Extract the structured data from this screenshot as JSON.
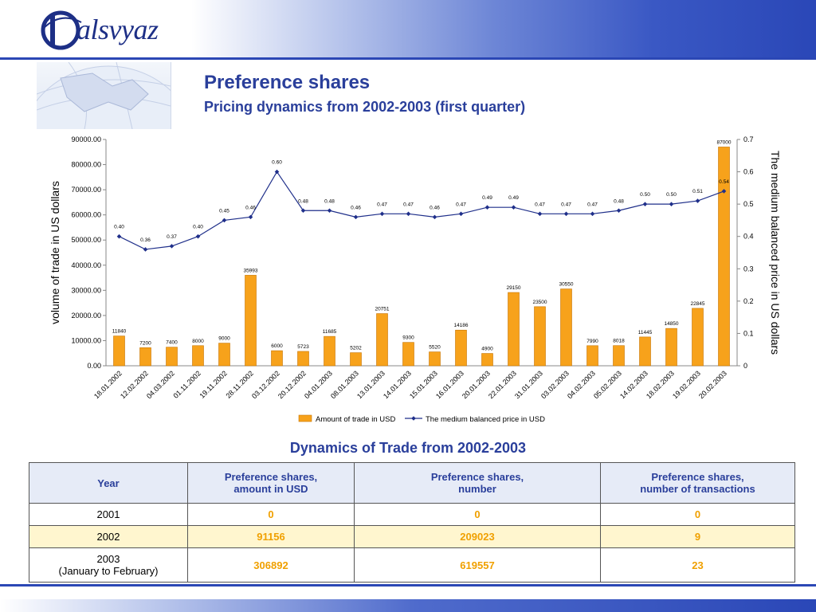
{
  "header": {
    "logo_text": "alsvyaz",
    "title": "Preference shares",
    "subtitle": "Pricing dynamics from 2002-2003 (first quarter)"
  },
  "chart_data": {
    "type": "bar+line",
    "categories": [
      "18.01.2002",
      "12.02.2002",
      "04.03.2002",
      "01.11.2002",
      "19.11.2002",
      "28.11.2002",
      "03.12.2002",
      "20.12.2002",
      "04.01.2003",
      "08.01.2003",
      "13.01.2003",
      "14.01.2003",
      "15.01.2003",
      "16.01.2003",
      "20.01.2003",
      "22.01.2003",
      "31.01.2003",
      "03.02.2003",
      "04.02.2003",
      "05.02.2003",
      "14.02.2003",
      "18.02.2003",
      "19.02.2003",
      "20.02.2003"
    ],
    "series": [
      {
        "name": "Amount of trade in USD",
        "type": "bar",
        "axis": "left",
        "values": [
          11840,
          7200,
          7400,
          8000,
          9000,
          35993,
          6000,
          5723,
          11685,
          5202,
          20751,
          9300,
          5520,
          14186,
          4900,
          29150,
          23500,
          30550,
          7990,
          8018,
          11445,
          14850,
          22845,
          87000
        ]
      },
      {
        "name": "The medium balanced price in USD",
        "type": "line",
        "axis": "right",
        "values": [
          0.4,
          0.36,
          0.37,
          0.4,
          0.45,
          0.46,
          0.6,
          0.48,
          0.48,
          0.46,
          0.47,
          0.47,
          0.46,
          0.47,
          0.49,
          0.49,
          0.47,
          0.47,
          0.47,
          0.48,
          0.5,
          0.5,
          0.51,
          0.54
        ]
      }
    ],
    "value_labels": {
      "bars": [
        "11840",
        "7200",
        "7400",
        "8000",
        "9000",
        "35993",
        "6000",
        "5723",
        "11685",
        "5202",
        "20751",
        "9300",
        "5520",
        "14186",
        "4900",
        "29150",
        "23500",
        "30550",
        "7990",
        "8018",
        "11445",
        "14850",
        "22845",
        "87000"
      ],
      "line": [
        "0.40",
        "0.36",
        "0.37",
        "0.40",
        "0.45",
        "0.46",
        "0.60",
        "0.48",
        "0.48",
        "0.46",
        "0.47",
        "0.47",
        "0.46",
        "0.47",
        "0.49",
        "0.49",
        "0.47",
        "0.47",
        "0.47",
        "0.48",
        "0.50",
        "0.50",
        "0.51",
        "0.54"
      ]
    },
    "ylabel": "volume of trade in US dollars",
    "y2label": "The medium balanced price in US dollars",
    "ylim": [
      0,
      90000
    ],
    "y2lim": [
      0,
      0.7
    ],
    "yticks": [
      "0.00",
      "10000.00",
      "20000.00",
      "30000.00",
      "40000.00",
      "50000.00",
      "60000.00",
      "70000.00",
      "80000.00",
      "90000.00"
    ],
    "y2ticks": [
      "0",
      "0.1",
      "0.2",
      "0.3",
      "0.4",
      "0.5",
      "0.6",
      "0.7"
    ],
    "legend_position": "bottom",
    "colors": {
      "bar": "#f7a21b",
      "bar_stroke": "#c77400",
      "line": "#1f2f8a",
      "marker": "#1f2f8a"
    }
  },
  "table": {
    "title": "Dynamics of Trade from 2002-2003",
    "headers": [
      "Year",
      "Preference shares,\namount in USD",
      "Preference shares,\nnumber",
      "Preference shares,\nnumber of transactions"
    ],
    "rows": [
      {
        "year": "2001",
        "amount": "0",
        "number": "0",
        "transactions": "0"
      },
      {
        "year": "2002",
        "amount": "91156",
        "number": "209023",
        "transactions": "9"
      },
      {
        "year": "2003\n(January to February)",
        "amount": "306892",
        "number": "619557",
        "transactions": "23"
      }
    ]
  }
}
